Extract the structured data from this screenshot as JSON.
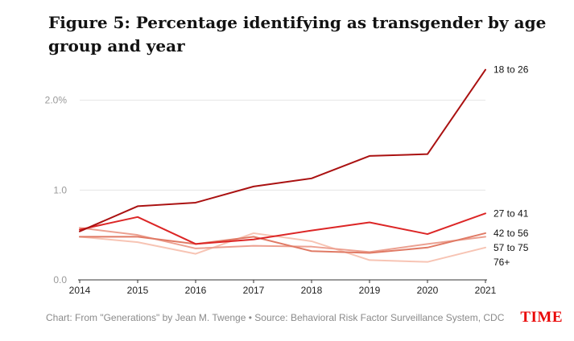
{
  "chart_data": {
    "type": "line",
    "title": "Figure 5: Percentage identifying as transgender by age group and year",
    "x": [
      2014,
      2015,
      2016,
      2017,
      2018,
      2019,
      2020,
      2021
    ],
    "y_ticks": [
      "0.0",
      "1.0",
      "2.0%"
    ],
    "y_tick_values": [
      0,
      1,
      2
    ],
    "ylim": [
      0,
      2.4
    ],
    "grid": true,
    "series": [
      {
        "name": "18 to 26",
        "color": "#aa1111",
        "values": [
          0.54,
          0.82,
          0.86,
          1.04,
          1.13,
          1.38,
          1.4,
          2.34
        ]
      },
      {
        "name": "27 to 41",
        "color": "#dc2626",
        "values": [
          0.56,
          0.7,
          0.4,
          0.45,
          0.55,
          0.64,
          0.51,
          0.74
        ]
      },
      {
        "name": "42 to 56",
        "color": "#e07a65",
        "values": [
          0.48,
          0.48,
          0.4,
          0.48,
          0.32,
          0.3,
          0.36,
          0.52
        ]
      },
      {
        "name": "57 to 75",
        "color": "#eca090",
        "values": [
          0.58,
          0.5,
          0.35,
          0.38,
          0.37,
          0.31,
          0.4,
          0.48
        ]
      },
      {
        "name": "76+",
        "color": "#f7c4b4",
        "values": [
          0.48,
          0.42,
          0.29,
          0.52,
          0.43,
          0.22,
          0.2,
          0.36
        ]
      }
    ]
  },
  "footer": "Chart: From \"Generations\" by Jean M. Twenge • Source: Behavioral Risk Factor Surveillance System, CDC",
  "logo": "TIME",
  "colors": {
    "grid": "#e4e4e4",
    "axis": "#333333",
    "tick_text": "#222222",
    "y_tick_text": "#999999",
    "logo": "#e90606"
  }
}
